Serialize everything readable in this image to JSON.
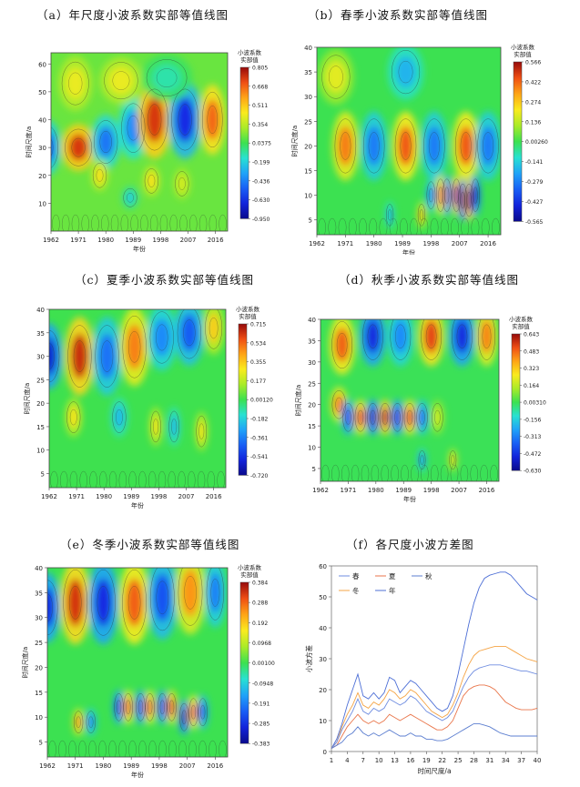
{
  "panels": [
    {
      "title": "（a）年尺度小波系数实部等值线图",
      "xlabel": "年份",
      "ylabel": "时间尺度/a",
      "xticks": [
        "1962",
        "1971",
        "1980",
        "1989",
        "1998",
        "2007",
        "2016"
      ],
      "yticks": [
        "10",
        "20",
        "30",
        "40",
        "50",
        "60"
      ],
      "ymax": 64,
      "colorbar_title": [
        "小波系数",
        "实部值"
      ],
      "colorbar_ticks": [
        "0.805",
        "0.668",
        "0.511",
        "0.354",
        "0.0375",
        "-0.199",
        "-0.436",
        "-0.630",
        "-0.950"
      ]
    },
    {
      "title": "（b）春季小波系数实部等值线图",
      "xlabel": "年份",
      "ylabel": "时间尺度/a",
      "xticks": [
        "1962",
        "1971",
        "1980",
        "1989",
        "1998",
        "2007",
        "2016"
      ],
      "yticks": [
        "5",
        "10",
        "15",
        "20",
        "25",
        "30",
        "35",
        "40"
      ],
      "ymax": 40,
      "colorbar_title": [
        "小波系数",
        "实部值"
      ],
      "colorbar_ticks": [
        "0.566",
        "0.422",
        "0.274",
        "0.136",
        "0.00260",
        "-0.141",
        "-0.279",
        "-0.427",
        "-0.565"
      ]
    },
    {
      "title": "（c）夏季小波系数实部等值线图",
      "xlabel": "年份",
      "ylabel": "时间尺度/a",
      "xticks": [
        "1962",
        "1971",
        "1980",
        "1989",
        "1998",
        "2007",
        "2016"
      ],
      "yticks": [
        "5",
        "10",
        "15",
        "20",
        "25",
        "30",
        "35",
        "40"
      ],
      "ymax": 40,
      "colorbar_title": [
        "小波系数",
        "实部值"
      ],
      "colorbar_ticks": [
        "0.715",
        "0.534",
        "0.355",
        "0.177",
        "0.00120",
        "-0.182",
        "-0.361",
        "-0.541",
        "-0.720"
      ]
    },
    {
      "title": "（d）秋季小波系数实部等值线图",
      "xlabel": "年份",
      "ylabel": "时间尺度/a",
      "xticks": [
        "1962",
        "1971",
        "1980",
        "1989",
        "1998",
        "2007",
        "2016"
      ],
      "yticks": [
        "5",
        "10",
        "15",
        "20",
        "25",
        "30",
        "35",
        "40"
      ],
      "ymax": 40,
      "colorbar_title": [
        "小波系数",
        "实部值"
      ],
      "colorbar_ticks": [
        "0.643",
        "0.483",
        "0.323",
        "0.164",
        "0.00310",
        "-0.156",
        "-0.313",
        "-0.472",
        "-0.630"
      ]
    },
    {
      "title": "（e）冬季小波系数实部等值线图",
      "xlabel": "年份",
      "ylabel": "时间尺度/a",
      "xticks": [
        "1962",
        "1971",
        "1980",
        "1989",
        "1998",
        "2007",
        "2016"
      ],
      "yticks": [
        "5",
        "10",
        "15",
        "20",
        "25",
        "30",
        "35",
        "40"
      ],
      "ymax": 40,
      "colorbar_title": [
        "小波系数",
        "实部值"
      ],
      "colorbar_ticks": [
        "0.384",
        "0.288",
        "0.192",
        "0.0968",
        "0.00100",
        "-0.0948",
        "-0.191",
        "-0.285",
        "-0.383"
      ]
    }
  ],
  "chart_data": [
    {
      "type": "heatmap",
      "title": "（a）年尺度小波系数实部等值线图",
      "xlabel": "年份",
      "ylabel": "时间尺度/a",
      "xlim": [
        1962,
        2020
      ],
      "ylim": [
        0,
        64
      ],
      "colorbar_range": [
        -0.95,
        0.805
      ],
      "cells": [
        {
          "x": 1971,
          "y": 30,
          "sx": 4,
          "sy": 6,
          "v": 0.7
        },
        {
          "x": 1980,
          "y": 32,
          "sx": 3.5,
          "sy": 7,
          "v": -0.55
        },
        {
          "x": 1989,
          "y": 37,
          "sx": 3.5,
          "sy": 8,
          "v": -0.5
        },
        {
          "x": 1996,
          "y": 40,
          "sx": 4,
          "sy": 10,
          "v": 0.7
        },
        {
          "x": 2006,
          "y": 40,
          "sx": 4,
          "sy": 10,
          "v": -0.75
        },
        {
          "x": 2015,
          "y": 40,
          "sx": 3,
          "sy": 9,
          "v": 0.6
        },
        {
          "x": 1961,
          "y": 30,
          "sx": 3,
          "sy": 7,
          "v": -0.6
        },
        {
          "x": 1970,
          "y": 53,
          "sx": 4,
          "sy": 7,
          "v": 0.25
        },
        {
          "x": 1985,
          "y": 54,
          "sx": 5,
          "sy": 6,
          "v": 0.25
        },
        {
          "x": 2000,
          "y": 55,
          "sx": 6,
          "sy": 6,
          "v": -0.2
        },
        {
          "x": 1978,
          "y": 20,
          "sx": 2,
          "sy": 4,
          "v": 0.3
        },
        {
          "x": 1995,
          "y": 18,
          "sx": 2,
          "sy": 4,
          "v": 0.3
        },
        {
          "x": 2005,
          "y": 17,
          "sx": 2,
          "sy": 4,
          "v": 0.2
        },
        {
          "x": 1988,
          "y": 12,
          "sx": 2,
          "sy": 3,
          "v": -0.3
        }
      ]
    },
    {
      "type": "heatmap",
      "title": "（b）春季小波系数实部等值线图",
      "xlabel": "年份",
      "ylabel": "时间尺度/a",
      "xlim": [
        1962,
        2020
      ],
      "ylim": [
        2,
        40
      ],
      "colorbar_range": [
        -0.565,
        0.566
      ],
      "cells": [
        {
          "x": 1971,
          "y": 20,
          "sx": 3,
          "sy": 5,
          "v": 0.4
        },
        {
          "x": 1980,
          "y": 20,
          "sx": 3,
          "sy": 5,
          "v": -0.3
        },
        {
          "x": 1990,
          "y": 20,
          "sx": 3,
          "sy": 5,
          "v": 0.45
        },
        {
          "x": 1999,
          "y": 20,
          "sx": 3,
          "sy": 5,
          "v": -0.3
        },
        {
          "x": 2009,
          "y": 20,
          "sx": 3,
          "sy": 5,
          "v": 0.45
        },
        {
          "x": 2016,
          "y": 20,
          "sx": 3,
          "sy": 5,
          "v": -0.3
        },
        {
          "x": 1968,
          "y": 34,
          "sx": 4,
          "sy": 4,
          "v": 0.2
        },
        {
          "x": 1990,
          "y": 35,
          "sx": 4,
          "sy": 4,
          "v": -0.2
        },
        {
          "x": 2006,
          "y": 10,
          "sx": 1.2,
          "sy": 3,
          "v": 0.5
        },
        {
          "x": 2008,
          "y": 9,
          "sx": 1.2,
          "sy": 3,
          "v": -0.55
        },
        {
          "x": 2010,
          "y": 9,
          "sx": 1.2,
          "sy": 3,
          "v": 0.55
        },
        {
          "x": 2003,
          "y": 10,
          "sx": 1.2,
          "sy": 3,
          "v": -0.45
        },
        {
          "x": 2001,
          "y": 10,
          "sx": 1.2,
          "sy": 3,
          "v": 0.4
        },
        {
          "x": 2012,
          "y": 10,
          "sx": 1.2,
          "sy": 3,
          "v": -0.5
        },
        {
          "x": 1998,
          "y": 10,
          "sx": 1.2,
          "sy": 2.5,
          "v": -0.3
        },
        {
          "x": 1995,
          "y": 6,
          "sx": 1,
          "sy": 2,
          "v": 0.3
        },
        {
          "x": 1985,
          "y": 6,
          "sx": 1,
          "sy": 2,
          "v": -0.2
        }
      ]
    },
    {
      "type": "heatmap",
      "title": "（c）夏季小波系数实部等值线图",
      "xlabel": "年份",
      "ylabel": "时间尺度/a",
      "xlim": [
        1962,
        2020
      ],
      "ylim": [
        2,
        40
      ],
      "colorbar_range": [
        -0.72,
        0.715
      ],
      "cells": [
        {
          "x": 1962,
          "y": 30,
          "sx": 3,
          "sy": 5,
          "v": -0.6
        },
        {
          "x": 1972,
          "y": 30,
          "sx": 3.5,
          "sy": 6,
          "v": 0.65
        },
        {
          "x": 1981,
          "y": 30,
          "sx": 3.5,
          "sy": 6,
          "v": -0.4
        },
        {
          "x": 1990,
          "y": 32,
          "sx": 3.5,
          "sy": 6,
          "v": 0.5
        },
        {
          "x": 1999,
          "y": 34,
          "sx": 3.5,
          "sy": 5,
          "v": -0.35
        },
        {
          "x": 2008,
          "y": 35,
          "sx": 3.5,
          "sy": 5,
          "v": -0.45
        },
        {
          "x": 2016,
          "y": 36,
          "sx": 2.5,
          "sy": 4,
          "v": 0.35
        },
        {
          "x": 1970,
          "y": 17,
          "sx": 2,
          "sy": 3,
          "v": 0.3
        },
        {
          "x": 1985,
          "y": 17,
          "sx": 2,
          "sy": 3,
          "v": -0.25
        },
        {
          "x": 1997,
          "y": 15,
          "sx": 1.5,
          "sy": 3,
          "v": 0.3
        },
        {
          "x": 2003,
          "y": 15,
          "sx": 1.5,
          "sy": 3,
          "v": -0.25
        },
        {
          "x": 2012,
          "y": 14,
          "sx": 1.5,
          "sy": 3,
          "v": 0.3
        }
      ]
    },
    {
      "type": "heatmap",
      "title": "（d）秋季小波系数实部等值线图",
      "xlabel": "年份",
      "ylabel": "时间尺度/a",
      "xlim": [
        1962,
        2020
      ],
      "ylim": [
        2,
        40
      ],
      "colorbar_range": [
        -0.63,
        0.643
      ],
      "cells": [
        {
          "x": 1969,
          "y": 34,
          "sx": 3,
          "sy": 5,
          "v": 0.5
        },
        {
          "x": 1979,
          "y": 36,
          "sx": 3,
          "sy": 5,
          "v": -0.5
        },
        {
          "x": 1988,
          "y": 36,
          "sx": 3,
          "sy": 5,
          "v": -0.3
        },
        {
          "x": 1998,
          "y": 36,
          "sx": 3,
          "sy": 5,
          "v": 0.55
        },
        {
          "x": 2008,
          "y": 36,
          "sx": 3,
          "sy": 5,
          "v": -0.5
        },
        {
          "x": 2016,
          "y": 36,
          "sx": 2.5,
          "sy": 5,
          "v": 0.45
        },
        {
          "x": 1968,
          "y": 20,
          "sx": 2,
          "sy": 3,
          "v": 0.45
        },
        {
          "x": 1971,
          "y": 17,
          "sx": 1.6,
          "sy": 3,
          "v": -0.45
        },
        {
          "x": 1975,
          "y": 17,
          "sx": 1.6,
          "sy": 3,
          "v": 0.55
        },
        {
          "x": 1979,
          "y": 17,
          "sx": 1.6,
          "sy": 3,
          "v": -0.55
        },
        {
          "x": 1983,
          "y": 17,
          "sx": 1.6,
          "sy": 3,
          "v": 0.6
        },
        {
          "x": 1987,
          "y": 17,
          "sx": 1.6,
          "sy": 3,
          "v": -0.5
        },
        {
          "x": 1991,
          "y": 17,
          "sx": 1.6,
          "sy": 3,
          "v": 0.55
        },
        {
          "x": 1995,
          "y": 17,
          "sx": 1.6,
          "sy": 3,
          "v": -0.35
        },
        {
          "x": 2000,
          "y": 17,
          "sx": 1.6,
          "sy": 3,
          "v": 0.2
        },
        {
          "x": 1995,
          "y": 7,
          "sx": 1,
          "sy": 2,
          "v": -0.3
        },
        {
          "x": 2005,
          "y": 7,
          "sx": 1,
          "sy": 2,
          "v": 0.3
        }
      ]
    },
    {
      "type": "heatmap",
      "title": "（e）冬季小波系数实部等值线图",
      "xlabel": "年份",
      "ylabel": "时间尺度/a",
      "xlim": [
        1962,
        2020
      ],
      "ylim": [
        2,
        40
      ],
      "colorbar_range": [
        -0.383,
        0.384
      ],
      "cells": [
        {
          "x": 1962,
          "y": 32,
          "sx": 3,
          "sy": 5,
          "v": -0.3
        },
        {
          "x": 1971,
          "y": 33,
          "sx": 3.5,
          "sy": 6,
          "v": 0.34
        },
        {
          "x": 1980,
          "y": 33,
          "sx": 3.5,
          "sy": 6,
          "v": -0.3
        },
        {
          "x": 1990,
          "y": 33,
          "sx": 3.5,
          "sy": 6,
          "v": 0.3
        },
        {
          "x": 1999,
          "y": 34,
          "sx": 3.5,
          "sy": 6,
          "v": -0.25
        },
        {
          "x": 2008,
          "y": 35,
          "sx": 3.5,
          "sy": 6,
          "v": 0.25
        },
        {
          "x": 2016,
          "y": 35,
          "sx": 2.5,
          "sy": 5,
          "v": -0.2
        },
        {
          "x": 1985,
          "y": 12,
          "sx": 1.3,
          "sy": 2.5,
          "v": -0.3
        },
        {
          "x": 1988,
          "y": 12,
          "sx": 1.3,
          "sy": 2.5,
          "v": 0.3
        },
        {
          "x": 1992,
          "y": 12,
          "sx": 1.3,
          "sy": 2.5,
          "v": -0.3
        },
        {
          "x": 1995,
          "y": 12,
          "sx": 1.3,
          "sy": 2.5,
          "v": 0.3
        },
        {
          "x": 1999,
          "y": 12,
          "sx": 1.3,
          "sy": 2.5,
          "v": -0.3
        },
        {
          "x": 2002,
          "y": 12,
          "sx": 1.3,
          "sy": 2.5,
          "v": 0.33
        },
        {
          "x": 2006,
          "y": 10,
          "sx": 1.3,
          "sy": 2.5,
          "v": -0.35
        },
        {
          "x": 2009,
          "y": 11,
          "sx": 1.3,
          "sy": 2.5,
          "v": 0.3
        },
        {
          "x": 2012,
          "y": 11,
          "sx": 1.3,
          "sy": 2.5,
          "v": -0.25
        },
        {
          "x": 1972,
          "y": 9,
          "sx": 1.3,
          "sy": 2,
          "v": 0.25
        },
        {
          "x": 1976,
          "y": 9,
          "sx": 1.3,
          "sy": 2,
          "v": -0.2
        }
      ]
    },
    {
      "type": "line",
      "title": "（f）各尺度小波方差图",
      "xlabel": "时间尺度/a",
      "ylabel": "小波方差",
      "x": [
        1,
        2,
        3,
        4,
        5,
        6,
        7,
        8,
        9,
        10,
        11,
        12,
        13,
        14,
        15,
        16,
        17,
        18,
        19,
        20,
        21,
        22,
        23,
        24,
        25,
        26,
        27,
        28,
        29,
        30,
        31,
        32,
        33,
        34,
        35,
        36,
        37,
        38,
        39,
        40
      ],
      "xticks": [
        1,
        4,
        7,
        10,
        13,
        16,
        19,
        22,
        25,
        28,
        31,
        34,
        37,
        40
      ],
      "ylim": [
        0,
        60
      ],
      "yticks": [
        0,
        10,
        20,
        30,
        40,
        50,
        60
      ],
      "legend": [
        "春",
        "夏",
        "秋",
        "冬",
        "年"
      ],
      "legend_position": "top-left",
      "series": [
        {
          "name": "年",
          "color": "#4d6fd6",
          "values": [
            1,
            4,
            9,
            15,
            20,
            25,
            18,
            17,
            19,
            17,
            19,
            24,
            23,
            19,
            21,
            23,
            22,
            20,
            18,
            16,
            14,
            13,
            14,
            18,
            25,
            33,
            41,
            48,
            53,
            56,
            57,
            57.5,
            58,
            58,
            57,
            55,
            53,
            51,
            50,
            49
          ]
        },
        {
          "name": "冬",
          "color": "#f5a445",
          "values": [
            1,
            3,
            8,
            12,
            15,
            19,
            15,
            14,
            16,
            15,
            17,
            20,
            19,
            17,
            18,
            20,
            19,
            17,
            15,
            13,
            12,
            11,
            12,
            15,
            19,
            24,
            28,
            31,
            32.5,
            33,
            33.5,
            34,
            34,
            34,
            33,
            32,
            31,
            30,
            29.5,
            29
          ]
        },
        {
          "name": "春",
          "color": "#6f8de0",
          "values": [
            1,
            3,
            7,
            10,
            13,
            17,
            13,
            12,
            14,
            13,
            14,
            17,
            16,
            15,
            16,
            18,
            17,
            15,
            13,
            12,
            11,
            10,
            11,
            13,
            17,
            21,
            24,
            26,
            27,
            27.5,
            28,
            28,
            28,
            27.5,
            27,
            26.5,
            26,
            26,
            25.5,
            25
          ]
        },
        {
          "name": "夏",
          "color": "#e9764b",
          "values": [
            1,
            2,
            5,
            8,
            10,
            12,
            10,
            9,
            10,
            9,
            10,
            12,
            11,
            10,
            11,
            12,
            11,
            10,
            9,
            8,
            7,
            7,
            8,
            10,
            14,
            18,
            20,
            21,
            21.5,
            21.5,
            21,
            20,
            18,
            16,
            15,
            14,
            13.5,
            13.5,
            13.5,
            14
          ]
        },
        {
          "name": "秋",
          "color": "#5d7fd0",
          "values": [
            1,
            2,
            3,
            5,
            6,
            8,
            6,
            5,
            6,
            5,
            6,
            7,
            6,
            5,
            5,
            6,
            5,
            5,
            4,
            4,
            3.5,
            3.5,
            4,
            5,
            6,
            7,
            8,
            9,
            9,
            8.5,
            8,
            7,
            6,
            5.5,
            5,
            5,
            5,
            5,
            5,
            5
          ]
        }
      ]
    }
  ]
}
